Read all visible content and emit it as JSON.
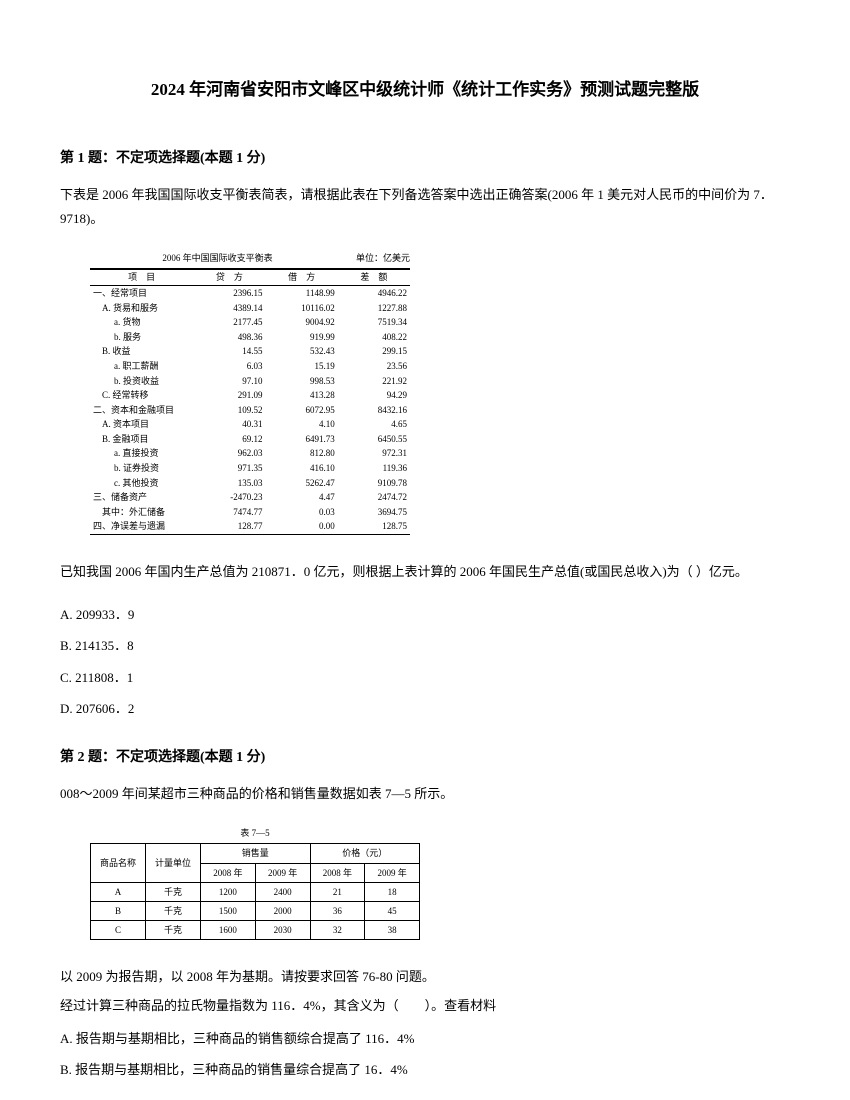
{
  "title": "2024 年河南省安阳市文峰区中级统计师《统计工作实务》预测试题完整版",
  "q1": {
    "header": "第 1 题：不定项选择题(本题 1 分)",
    "text": "下表是 2006 年我国国际收支平衡表简表，请根据此表在下列备选答案中选出正确答案(2006 年 1 美元对人民币的中间价为 7．9718)。",
    "table_title": "2006 年中国国际收支平衡表",
    "table_unit": "单位：亿美元",
    "headers": [
      "项　目",
      "贷　方",
      "借　方",
      "差　额"
    ],
    "rows": [
      {
        "label": "一、经常项目",
        "c2": "2396.15",
        "c3": "1148.99",
        "c4": "4946.22",
        "indent": 0
      },
      {
        "label": "A. 货易和服务",
        "c2": "4389.14",
        "c3": "10116.02",
        "c4": "1227.88",
        "indent": 1
      },
      {
        "label": "a. 货物",
        "c2": "2177.45",
        "c3": "9004.92",
        "c4": "7519.34",
        "indent": 2
      },
      {
        "label": "b. 服务",
        "c2": "498.36",
        "c3": "919.99",
        "c4": "408.22",
        "indent": 2
      },
      {
        "label": "B. 收益",
        "c2": "14.55",
        "c3": "532.43",
        "c4": "299.15",
        "indent": 1
      },
      {
        "label": "a. 职工薪酬",
        "c2": "6.03",
        "c3": "15.19",
        "c4": "23.56",
        "indent": 2
      },
      {
        "label": "b. 投资收益",
        "c2": "97.10",
        "c3": "998.53",
        "c4": "221.92",
        "indent": 2
      },
      {
        "label": "C. 经常转移",
        "c2": "291.09",
        "c3": "413.28",
        "c4": "94.29",
        "indent": 1
      },
      {
        "label": "二、资本和金融项目",
        "c2": "109.52",
        "c3": "6072.95",
        "c4": "8432.16",
        "indent": 0
      },
      {
        "label": "A. 资本项目",
        "c2": "40.31",
        "c3": "4.10",
        "c4": "4.65",
        "indent": 1
      },
      {
        "label": "B. 金融项目",
        "c2": "69.12",
        "c3": "6491.73",
        "c4": "6450.55",
        "indent": 1
      },
      {
        "label": "a. 直接投资",
        "c2": "962.03",
        "c3": "812.80",
        "c4": "972.31",
        "indent": 2
      },
      {
        "label": "b. 证券投资",
        "c2": "971.35",
        "c3": "416.10",
        "c4": "119.36",
        "indent": 2
      },
      {
        "label": "c. 其他投资",
        "c2": "135.03",
        "c3": "5262.47",
        "c4": "9109.78",
        "indent": 2
      },
      {
        "label": "三、储备资产",
        "c2": "-2470.23",
        "c3": "4.47",
        "c4": "2474.72",
        "indent": 0
      },
      {
        "label": "其中：外汇储备",
        "c2": "7474.77",
        "c3": "0.03",
        "c4": "3694.75",
        "indent": 1
      },
      {
        "label": "四、净误差与遗漏",
        "c2": "128.77",
        "c3": "0.00",
        "c4": "128.75",
        "indent": 0
      }
    ],
    "text2": "已知我国 2006 年国内生产总值为 210871．0 亿元，则根据上表计算的 2006 年国民生产总值(或国民总收入)为（ ）亿元。",
    "options": {
      "A": "A. 209933．9",
      "B": "B. 214135．8",
      "C": "C. 211808．1",
      "D": "D. 207606．2"
    }
  },
  "q2": {
    "header": "第 2 题：不定项选择题(本题 1 分)",
    "text": "008～2009 年间某超市三种商品的价格和销售量数据如表 7—5 所示。",
    "table_title": "表 7—5",
    "col_headers1": [
      "商品名称",
      "计量单位",
      "销售量",
      "价格（元）"
    ],
    "col_headers2": [
      "2008 年",
      "2009 年",
      "2008 年",
      "2009 年"
    ],
    "rows": [
      [
        "A",
        "千克",
        "1200",
        "2400",
        "21",
        "18"
      ],
      [
        "B",
        "千克",
        "1500",
        "2000",
        "36",
        "45"
      ],
      [
        "C",
        "千克",
        "1600",
        "2030",
        "32",
        "38"
      ]
    ],
    "text2": "以 2009 为报告期，以 2008 年为基期。请按要求回答 76-80 问题。",
    "text3": "经过计算三种商品的拉氏物量指数为 116．4%，其含义为（　　）。查看材料",
    "options": {
      "A": "A. 报告期与基期相比，三种商品的销售额综合提高了 116．4%",
      "B": "B. 报告期与基期相比，三种商品的销售量综合提高了 16．4%"
    }
  }
}
